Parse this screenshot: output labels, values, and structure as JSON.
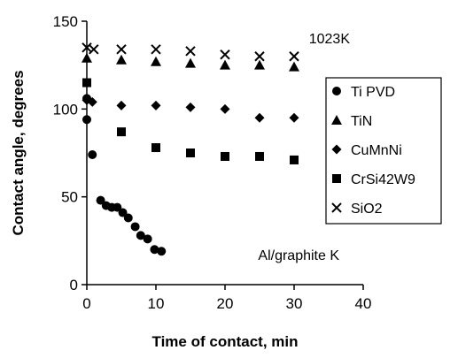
{
  "chart_data": {
    "type": "scatter",
    "xlabel": "Time of contact, min",
    "ylabel": "Contact angle, degrees",
    "xlim": [
      0,
      40
    ],
    "ylim": [
      0,
      150
    ],
    "xticks": [
      0,
      10,
      20,
      30,
      40
    ],
    "yticks": [
      0,
      50,
      100,
      150
    ],
    "grid": false,
    "legend_position": "right",
    "annotations": [
      "1023K",
      "Al/graphite K"
    ],
    "series": [
      {
        "name": "Ti PVD",
        "marker": "circle",
        "points": [
          [
            0,
            94
          ],
          [
            0,
            106
          ],
          [
            0.8,
            74
          ],
          [
            2,
            48
          ],
          [
            2.8,
            45
          ],
          [
            3.6,
            44
          ],
          [
            4.4,
            44
          ],
          [
            5.2,
            41
          ],
          [
            6,
            38
          ],
          [
            7,
            33
          ],
          [
            7.8,
            28
          ],
          [
            8.8,
            26
          ],
          [
            9.8,
            20
          ],
          [
            10.8,
            19
          ]
        ]
      },
      {
        "name": "TiN",
        "marker": "triangle",
        "points": [
          [
            0,
            129
          ],
          [
            5,
            128
          ],
          [
            10,
            127
          ],
          [
            15,
            126
          ],
          [
            20,
            125
          ],
          [
            25,
            125
          ],
          [
            30,
            124
          ]
        ]
      },
      {
        "name": "CuMnNi",
        "marker": "diamond",
        "points": [
          [
            0,
            105
          ],
          [
            0.8,
            104
          ],
          [
            5,
            102
          ],
          [
            10,
            102
          ],
          [
            15,
            101
          ],
          [
            20,
            100
          ],
          [
            25,
            95
          ],
          [
            30,
            95
          ]
        ]
      },
      {
        "name": "CrSi42W9",
        "marker": "square",
        "points": [
          [
            0,
            115
          ],
          [
            5,
            87
          ],
          [
            10,
            78
          ],
          [
            15,
            75
          ],
          [
            20,
            73
          ],
          [
            25,
            73
          ],
          [
            30,
            71
          ]
        ]
      },
      {
        "name": "SiO2",
        "marker": "x",
        "points": [
          [
            0,
            135
          ],
          [
            1,
            134
          ],
          [
            5,
            134
          ],
          [
            10,
            134
          ],
          [
            15,
            133
          ],
          [
            20,
            131
          ],
          [
            25,
            130
          ],
          [
            30,
            130
          ]
        ]
      }
    ]
  }
}
